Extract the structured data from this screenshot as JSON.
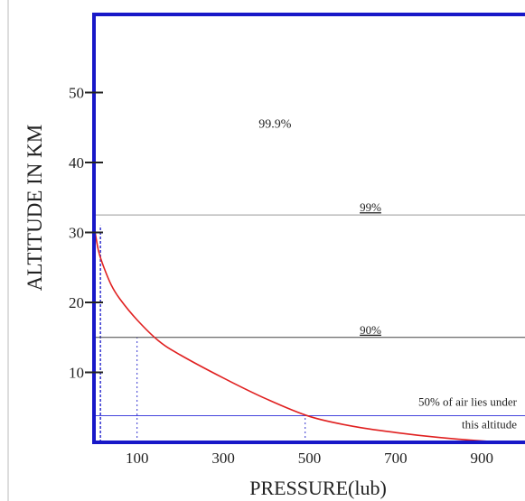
{
  "chart_data": {
    "type": "line",
    "title": "",
    "xlabel": "PRESSURE(lub)",
    "ylabel": "ALTITUDE IN KM",
    "xlim": [
      0,
      1000
    ],
    "ylim": [
      0,
      51
    ],
    "x_ticks": [
      100,
      300,
      500,
      700,
      900
    ],
    "y_ticks": [
      10,
      20,
      30,
      40,
      50
    ],
    "grid": false,
    "series": [
      {
        "name": "",
        "color": "#e02020",
        "points": [
          [
            0,
            31
          ],
          [
            10,
            27.5
          ],
          [
            20,
            25.5
          ],
          [
            40,
            22.5
          ],
          [
            60,
            20.5
          ],
          [
            100,
            17.5
          ],
          [
            150,
            14.5
          ],
          [
            200,
            12.5
          ],
          [
            300,
            9.2
          ],
          [
            400,
            6.2
          ],
          [
            500,
            3.7
          ],
          [
            600,
            2.3
          ],
          [
            700,
            1.4
          ],
          [
            800,
            0.7
          ],
          [
            900,
            0.2
          ],
          [
            970,
            0
          ]
        ]
      }
    ],
    "hlines": [
      {
        "y": 32.5,
        "color": "#999999",
        "label": "99%"
      },
      {
        "y": 15,
        "color": "#444444",
        "label": "90%"
      },
      {
        "y": 3.8,
        "color": "#4444dd",
        "label": "50% of air lies under",
        "label2": "this altitude"
      }
    ],
    "vlines": [
      {
        "x": 15,
        "from": 0,
        "to": 31
      },
      {
        "x": 100,
        "from": 0,
        "to": 15
      },
      {
        "x": 490,
        "from": 0,
        "to": 3.8
      }
    ],
    "annotations": [
      {
        "text": "99.9%",
        "x": 420,
        "y": 45
      }
    ],
    "colors": {
      "axis": "#1818c8",
      "guides": "#3535d0"
    }
  }
}
